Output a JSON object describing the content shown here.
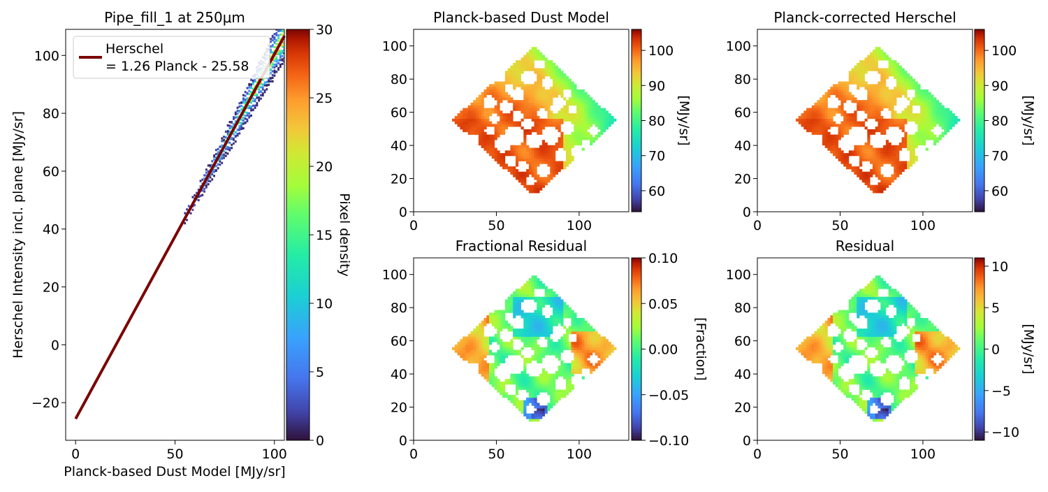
{
  "chart_data": [
    {
      "type": "heatmap",
      "subtype": "2d-histogram-scatter-with-fit-line",
      "title": "Pipe_fill_1 at 250μm",
      "xlabel": "Planck-based Dust Model [MJy/sr]",
      "ylabel": "Herschel Intensity incl. plane [MJy/sr]",
      "xlim": [
        -5,
        105
      ],
      "ylim": [
        -33,
        109
      ],
      "xticks": [
        0,
        50,
        100
      ],
      "yticks": [
        -20,
        0,
        20,
        40,
        60,
        80,
        100
      ],
      "fit": {
        "slope": 1.26,
        "intercept": -25.58,
        "x": [
          0,
          105
        ],
        "color": "#7a0403"
      },
      "legend": {
        "label": "Herschel\n= 1.26 Planck - 25.58",
        "label_line1": "Herschel",
        "label_line2": "= 1.26 Planck - 25.58",
        "loc": "upper-left"
      },
      "density_cloud": {
        "x_range": [
          55,
          105
        ],
        "approx_relation": "y ≈ 1.26x − 25.6 ± 5",
        "peak_density_region": "x 75–100"
      },
      "colorbar": {
        "label": "Pixel density",
        "min": 0,
        "max": 30,
        "ticks": [
          0,
          5,
          10,
          15,
          20,
          25,
          30
        ],
        "cmap": "turbo"
      }
    },
    {
      "type": "heatmap",
      "title": "Planck-based Dust Model",
      "xlim": [
        0,
        130
      ],
      "ylim": [
        0,
        110
      ],
      "xticks": [
        0,
        50,
        100
      ],
      "yticks": [
        0,
        20,
        40,
        60,
        80,
        100
      ],
      "colorbar": {
        "label": "[MJy/sr]",
        "min": 54,
        "max": 106,
        "ticks": [
          60,
          70,
          80,
          90,
          100
        ],
        "cmap": "turbo"
      },
      "description": "diamond-shaped map, high values (~100) on left/bottom, lower (~65–75) toward right corner"
    },
    {
      "type": "heatmap",
      "title": "Planck-corrected Herschel",
      "xlim": [
        0,
        130
      ],
      "ylim": [
        0,
        110
      ],
      "xticks": [
        0,
        50,
        100
      ],
      "yticks": [
        0,
        20,
        40,
        60,
        80,
        100
      ],
      "colorbar": {
        "label": "[MJy/sr]",
        "min": 54,
        "max": 106,
        "ticks": [
          60,
          70,
          80,
          90,
          100
        ],
        "cmap": "turbo"
      }
    },
    {
      "type": "heatmap",
      "title": "Fractional Residual",
      "xlim": [
        0,
        130
      ],
      "ylim": [
        0,
        110
      ],
      "xticks": [
        0,
        50,
        100
      ],
      "yticks": [
        0,
        20,
        40,
        60,
        80,
        100
      ],
      "colorbar": {
        "label": "[Fraction]",
        "min": -0.1,
        "max": 0.1,
        "ticks": [
          -0.1,
          -0.05,
          0.0,
          0.05,
          0.1
        ],
        "tick_labels": [
          "−0.10",
          "−0.05",
          "0.00",
          "0.05",
          "0.10"
        ],
        "cmap": "turbo"
      }
    },
    {
      "type": "heatmap",
      "title": "Residual",
      "xlim": [
        0,
        130
      ],
      "ylim": [
        0,
        110
      ],
      "xticks": [
        0,
        50,
        100
      ],
      "yticks": [
        0,
        20,
        40,
        60,
        80,
        100
      ],
      "colorbar": {
        "label": "[MJy/sr]",
        "min": -11,
        "max": 11,
        "ticks": [
          -10,
          -5,
          0,
          5,
          10
        ],
        "tick_labels": [
          "−10",
          "−5",
          "0",
          "5",
          "10"
        ],
        "cmap": "turbo"
      }
    }
  ]
}
